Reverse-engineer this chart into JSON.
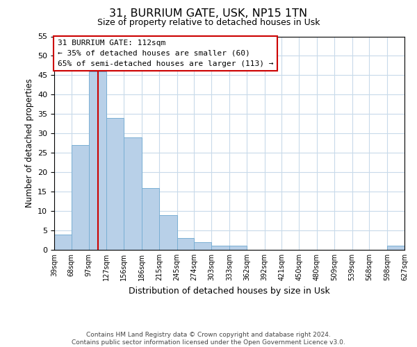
{
  "title": "31, BURRIUM GATE, USK, NP15 1TN",
  "subtitle": "Size of property relative to detached houses in Usk",
  "xlabel": "Distribution of detached houses by size in Usk",
  "ylabel": "Number of detached properties",
  "bar_color": "#b8d0e8",
  "bar_edge_color": "#7aafd4",
  "bins": [
    39,
    68,
    97,
    127,
    156,
    186,
    215,
    245,
    274,
    303,
    333,
    362,
    392,
    421,
    450,
    480,
    509,
    539,
    568,
    598,
    627
  ],
  "counts": [
    4,
    27,
    46,
    34,
    29,
    16,
    9,
    3,
    2,
    1,
    1,
    0,
    0,
    0,
    0,
    0,
    0,
    0,
    0,
    1
  ],
  "tick_labels": [
    "39sqm",
    "68sqm",
    "97sqm",
    "127sqm",
    "156sqm",
    "186sqm",
    "215sqm",
    "245sqm",
    "274sqm",
    "303sqm",
    "333sqm",
    "362sqm",
    "392sqm",
    "421sqm",
    "450sqm",
    "480sqm",
    "509sqm",
    "539sqm",
    "568sqm",
    "598sqm",
    "627sqm"
  ],
  "ylim": [
    0,
    55
  ],
  "yticks": [
    0,
    5,
    10,
    15,
    20,
    25,
    30,
    35,
    40,
    45,
    50,
    55
  ],
  "vline_x": 112,
  "vline_color": "#cc0000",
  "annotation_title": "31 BURRIUM GATE: 112sqm",
  "annotation_line1": "← 35% of detached houses are smaller (60)",
  "annotation_line2": "65% of semi-detached houses are larger (113) →",
  "footer_line1": "Contains HM Land Registry data © Crown copyright and database right 2024.",
  "footer_line2": "Contains public sector information licensed under the Open Government Licence v3.0.",
  "background_color": "#ffffff",
  "grid_color": "#c8daea"
}
